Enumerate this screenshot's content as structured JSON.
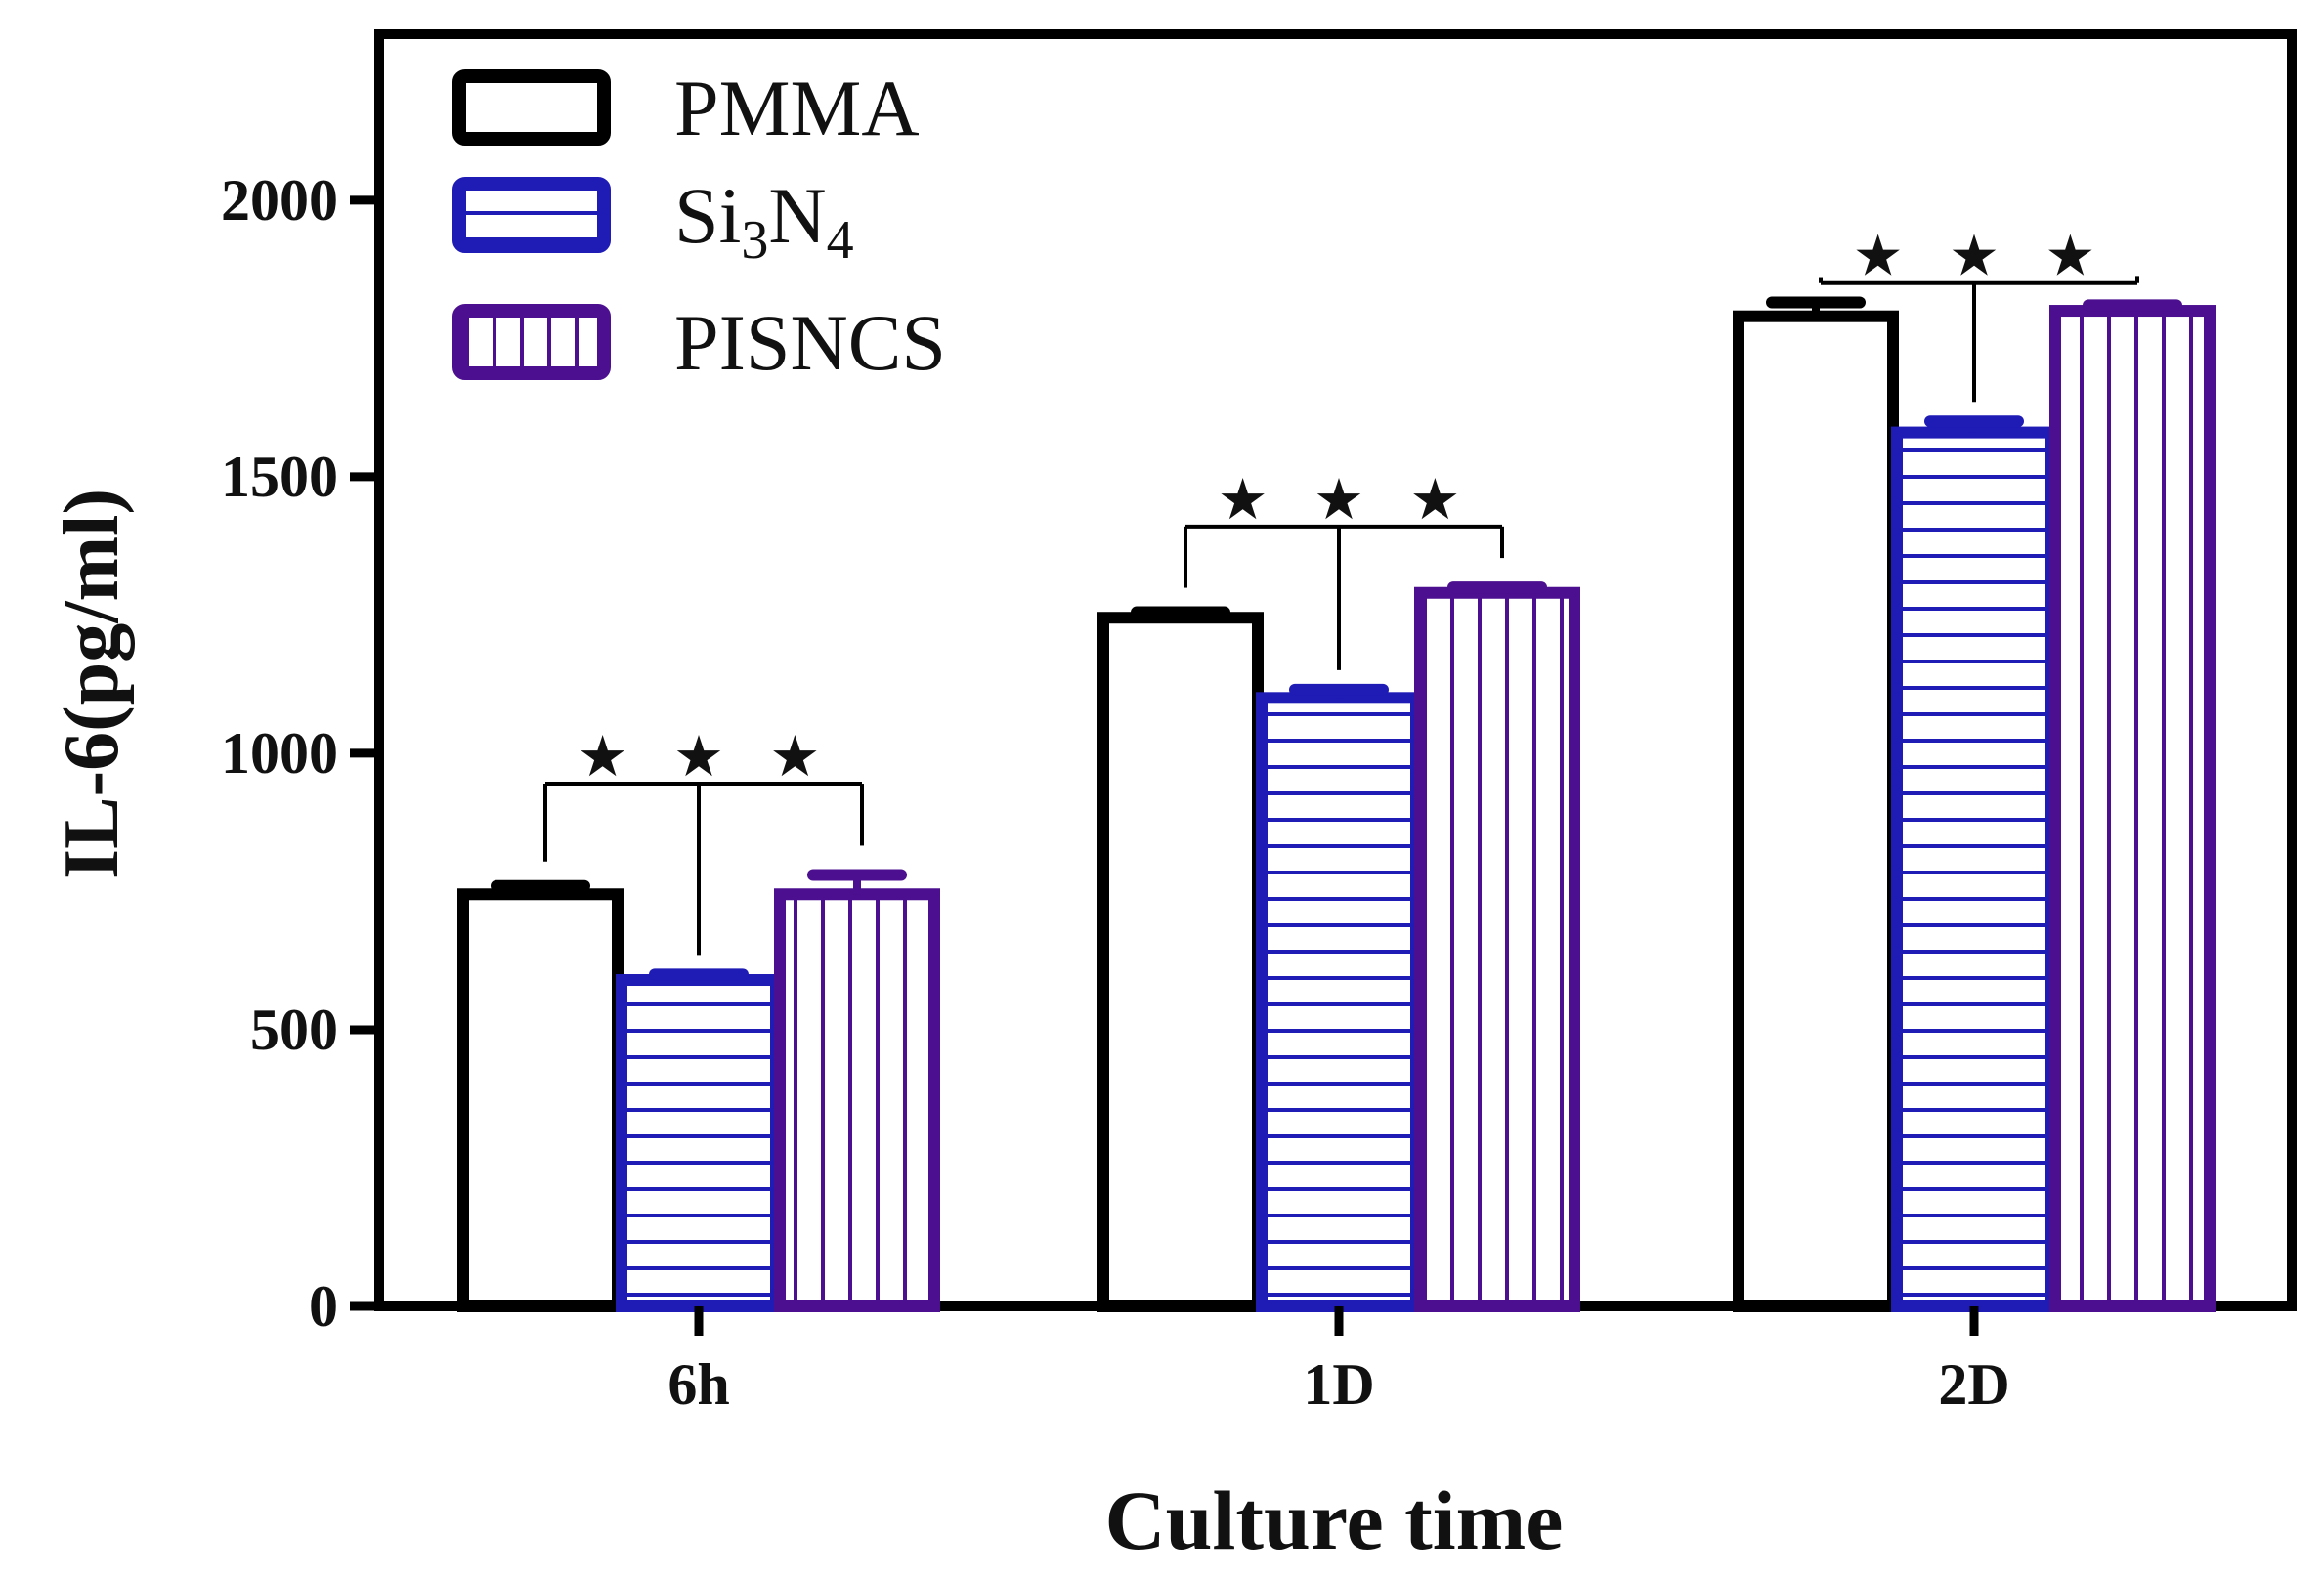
{
  "chart_data": {
    "type": "bar",
    "title": "",
    "xlabel": "Culture time",
    "ylabel": "IL-6(pg/ml)",
    "ylim": [
      0,
      2300
    ],
    "yticks": [
      0,
      500,
      1000,
      1500,
      2000
    ],
    "categories": [
      "6h",
      "1D",
      "2D"
    ],
    "legend_position": "top-left",
    "series": [
      {
        "name": "PMMA",
        "name_base": "PMMA",
        "name_sub": [],
        "pattern": "none",
        "color": "#000000",
        "values": [
          745,
          1245,
          1790
        ],
        "errors": [
          15,
          10,
          25
        ]
      },
      {
        "name": "Si3N4",
        "name_base": "Si",
        "name_sub": [
          "3",
          "N",
          "4"
        ],
        "pattern": "horizontal",
        "color": "#1f1bb5",
        "values": [
          590,
          1100,
          1580
        ],
        "errors": [
          10,
          15,
          20
        ]
      },
      {
        "name": "PISNCS",
        "name_base": "PISNCS",
        "name_sub": [],
        "pattern": "vertical",
        "color": "#4b0f8f",
        "values": [
          745,
          1290,
          1800
        ],
        "errors": [
          35,
          10,
          10
        ]
      }
    ],
    "annotations": [
      {
        "category": "6h",
        "text": "★ ★ ★",
        "level": 945
      },
      {
        "category": "1D",
        "text": "★ ★ ★",
        "level": 1410
      },
      {
        "category": "2D",
        "text": "★ ★ ★",
        "level": 1850
      }
    ]
  }
}
